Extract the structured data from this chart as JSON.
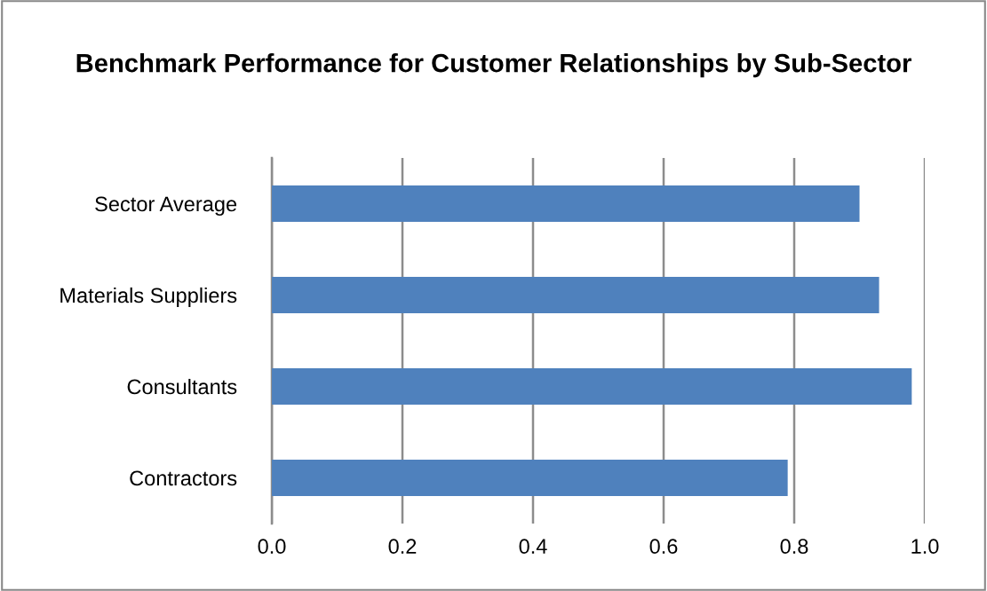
{
  "chart_data": {
    "type": "bar",
    "orientation": "horizontal",
    "title": "Benchmark Performance for Customer Relationships by Sub-Sector",
    "categories": [
      "Sector Average",
      "Materials Suppliers",
      "Consultants",
      "Contractors"
    ],
    "values": [
      0.9,
      0.93,
      0.98,
      0.79
    ],
    "color": "#4f81bd",
    "xlim": [
      0,
      1
    ],
    "xticks": [
      {
        "value": 0,
        "label": "0.0"
      },
      {
        "value": 0.2,
        "label": "0.2"
      },
      {
        "value": 0.4,
        "label": "0.4"
      },
      {
        "value": 0.6,
        "label": "0.6"
      },
      {
        "value": 0.8,
        "label": "0.8"
      },
      {
        "value": 1,
        "label": "1.0"
      }
    ],
    "grid": "x",
    "legend": false
  }
}
